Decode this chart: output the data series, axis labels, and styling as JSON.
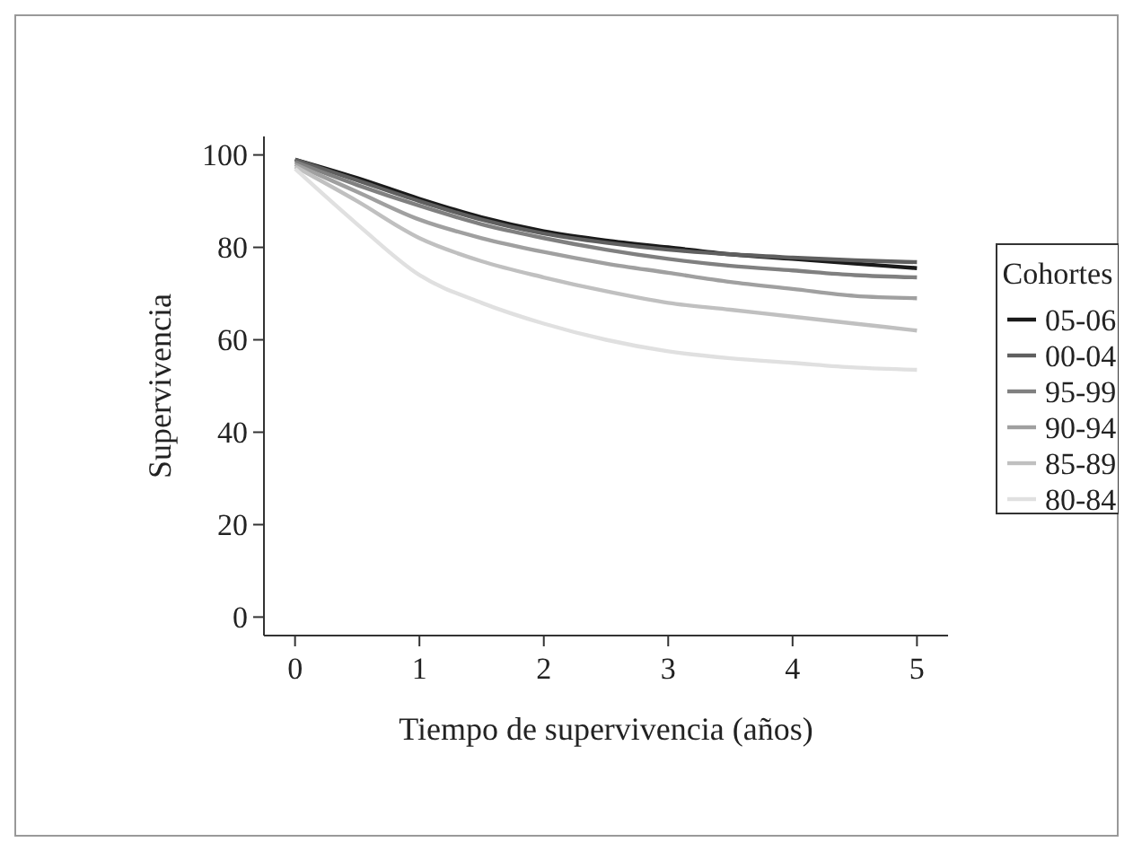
{
  "chart_data": {
    "type": "line",
    "xlabel": "Tiempo de supervivencia (años)",
    "ylabel": "Supervivencia",
    "legend_title": "Cohortes",
    "legend": "right",
    "x": [
      0,
      0.5,
      1,
      1.5,
      2,
      2.5,
      3,
      3.5,
      4,
      4.5,
      5
    ],
    "xlim": [
      -0.25,
      5.25
    ],
    "xticks": [
      0,
      1,
      2,
      3,
      4,
      5
    ],
    "ylim": [
      -4,
      104
    ],
    "yticks": [
      0,
      20,
      40,
      60,
      80,
      100
    ],
    "grid": false,
    "series": [
      {
        "name": "05-06",
        "color": "#1a1a1a",
        "values": [
          99,
          95,
          90.5,
          86.5,
          83.5,
          81.5,
          80,
          78.5,
          77.5,
          76.5,
          75.5
        ]
      },
      {
        "name": "00-04",
        "color": "#5f5f5f",
        "values": [
          99,
          94.5,
          90,
          86,
          83,
          81,
          79.5,
          78.5,
          77.8,
          77.2,
          76.8
        ]
      },
      {
        "name": "95-99",
        "color": "#808080",
        "values": [
          98.5,
          93.5,
          89,
          85,
          82,
          79.5,
          77.5,
          76,
          75,
          74,
          73.5
        ]
      },
      {
        "name": "90-94",
        "color": "#a0a0a0",
        "values": [
          98,
          92,
          86,
          82,
          79,
          76.5,
          74.5,
          72.5,
          71,
          69.5,
          69
        ]
      },
      {
        "name": "85-89",
        "color": "#c0c0c0",
        "values": [
          97.5,
          90,
          82,
          77,
          73.5,
          70.5,
          68,
          66.5,
          65,
          63.5,
          62
        ]
      },
      {
        "name": "80-84",
        "color": "#e0e0e0",
        "values": [
          97,
          85,
          74,
          68,
          63.5,
          60,
          57.5,
          56,
          55,
          54,
          53.5
        ]
      }
    ]
  }
}
